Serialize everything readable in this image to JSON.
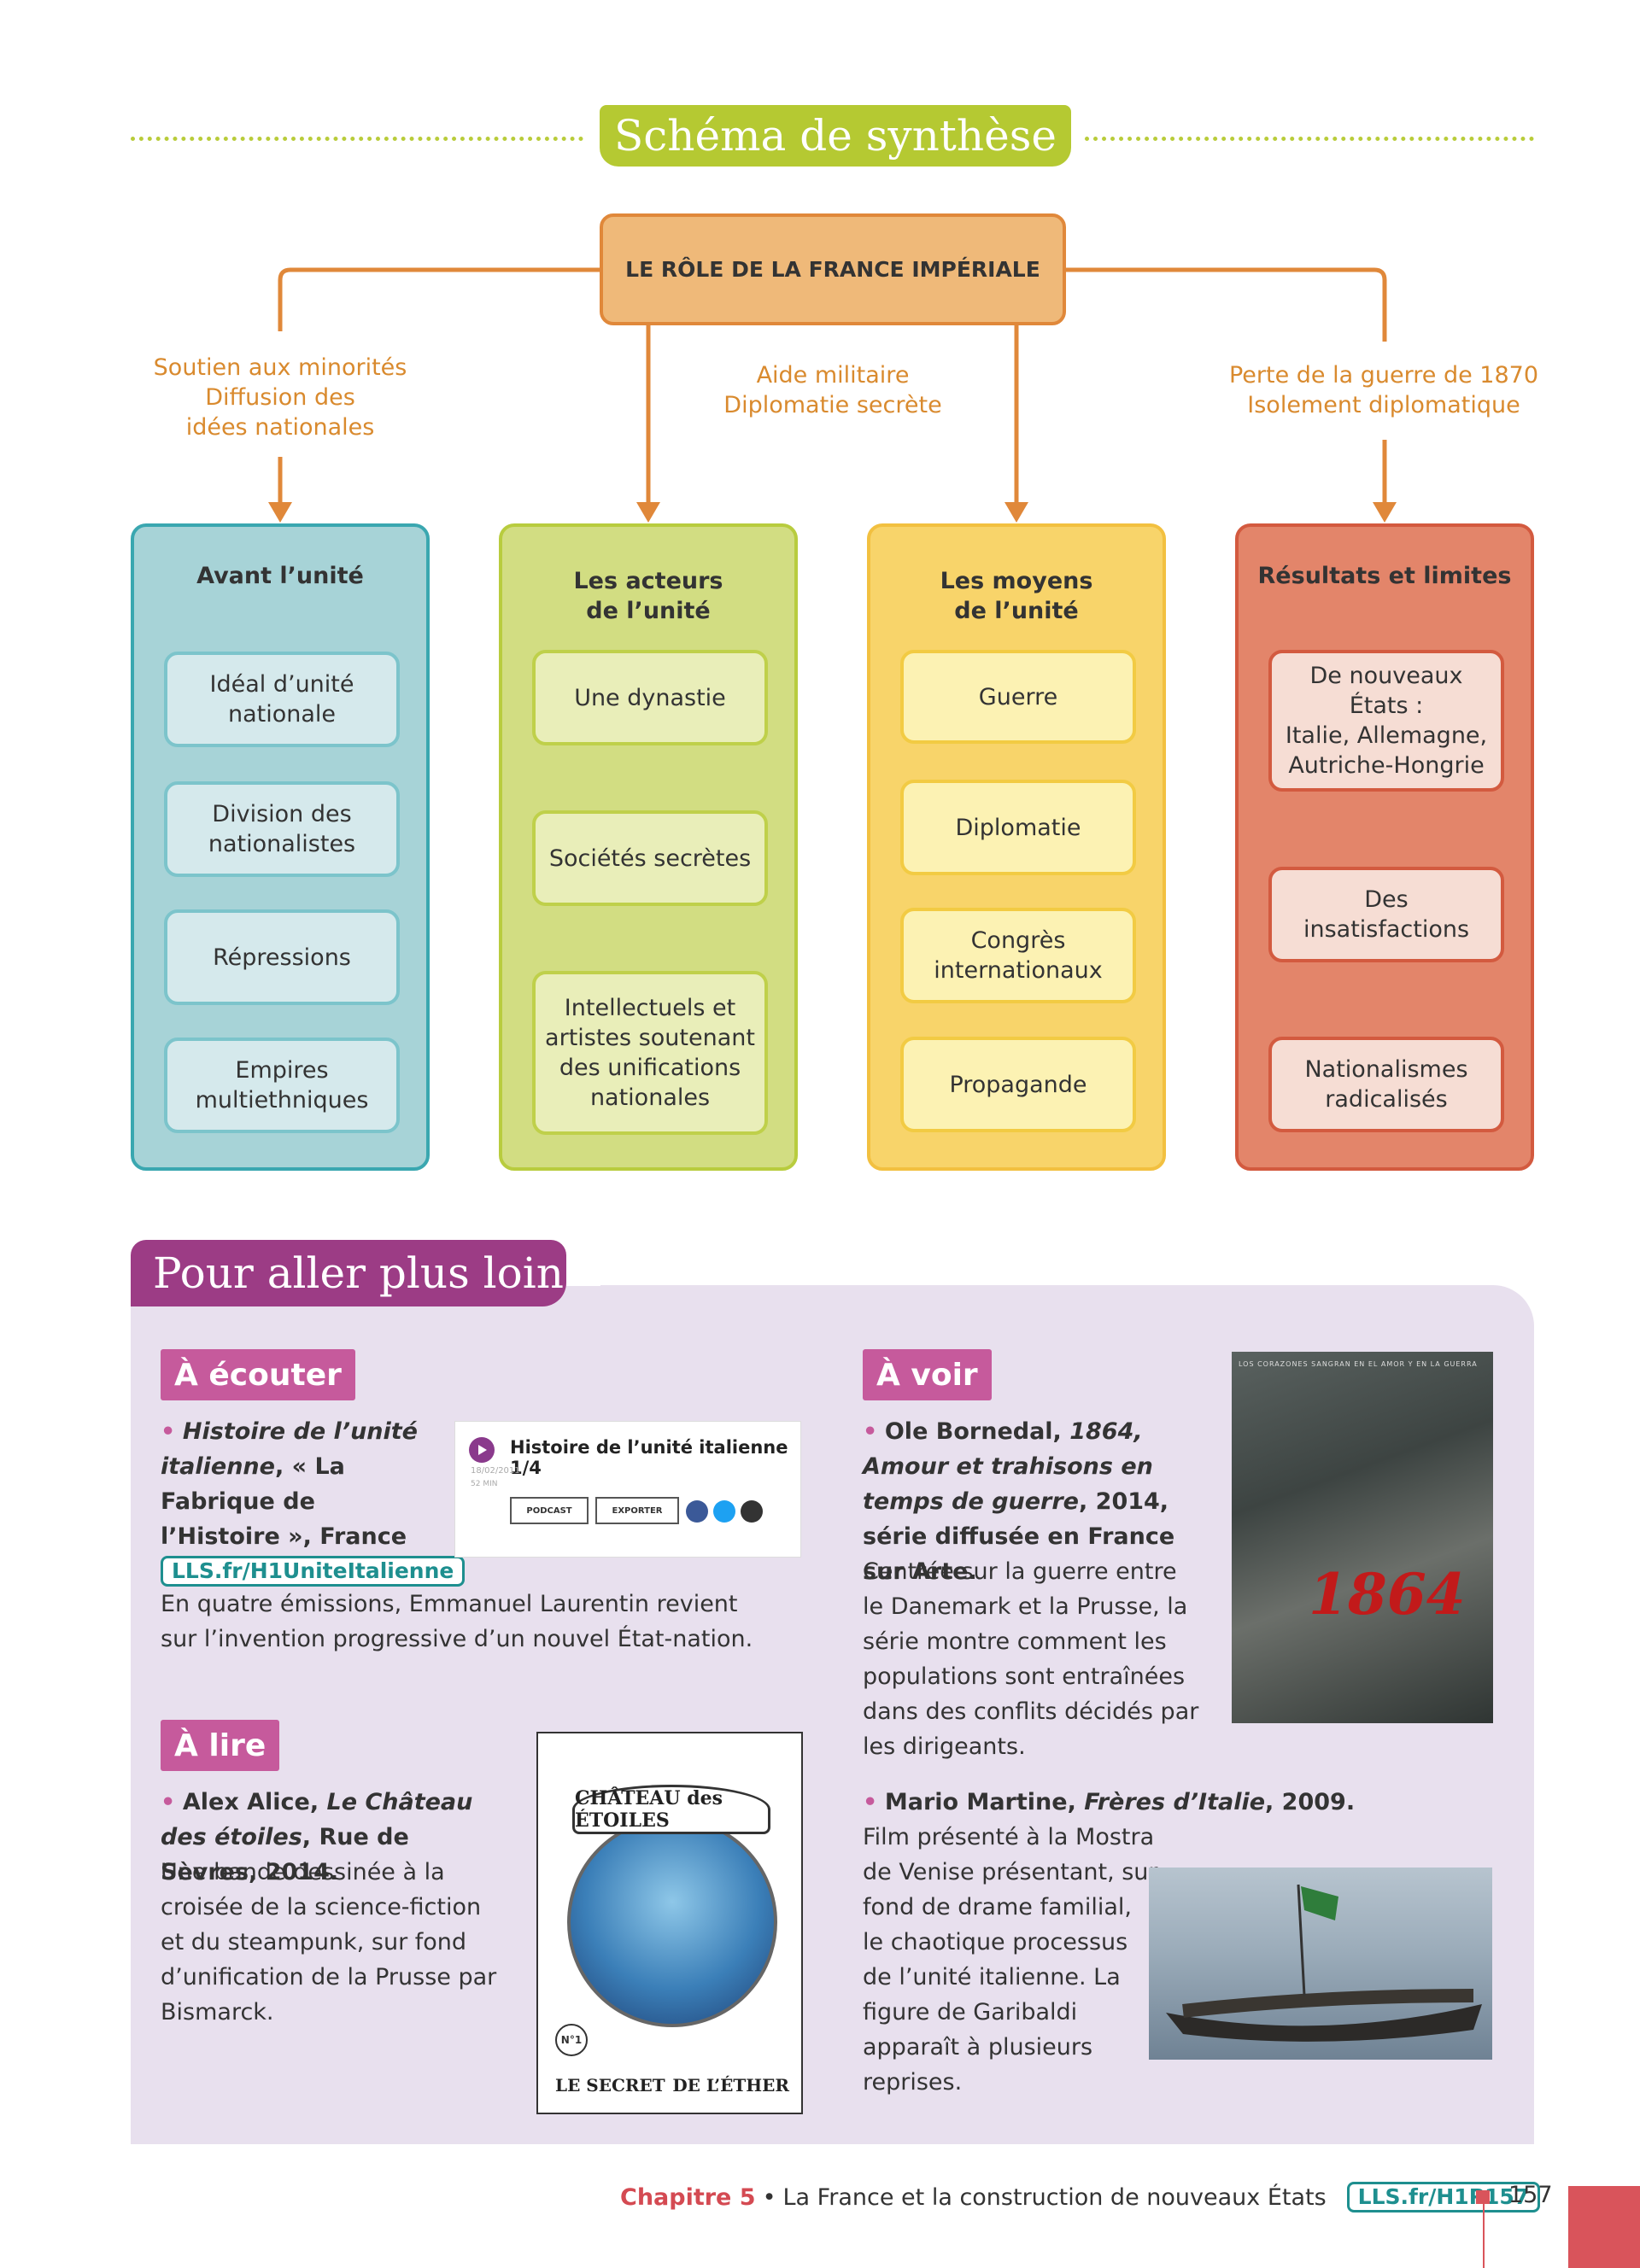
{
  "schema": {
    "title": "Schéma de synthèse",
    "central": "LE RÔLE DE LA FRANCE IMPÉRIALE",
    "branch_labels": [
      [
        "Soutien aux minorités",
        "Diffusion des",
        "idées nationales"
      ],
      [
        "Aide militaire",
        "Diplomatie secrète"
      ],
      [
        "Perte de la guerre de 1870",
        "Isolement diplomatique"
      ]
    ],
    "columns": [
      {
        "title": [
          "Avant l’unité"
        ],
        "items": [
          [
            "Idéal d’unité",
            "nationale"
          ],
          [
            "Division des",
            "nationalistes"
          ],
          [
            "Répressions"
          ],
          [
            "Empires",
            "multiethniques"
          ]
        ]
      },
      {
        "title": [
          "Les acteurs",
          "de l’unité"
        ],
        "items": [
          [
            "Une dynastie"
          ],
          [
            "Sociétés secrètes"
          ],
          [
            "Intellectuels et",
            "artistes soutenant",
            "des unifications",
            "nationales"
          ]
        ]
      },
      {
        "title": [
          "Les moyens",
          "de l’unité"
        ],
        "items": [
          [
            "Guerre"
          ],
          [
            "Diplomatie"
          ],
          [
            "Congrès",
            "internationaux"
          ],
          [
            "Propagande"
          ]
        ]
      },
      {
        "title": [
          "Résultats et limites"
        ],
        "items": [
          [
            "De nouveaux États :",
            "Italie, Allemagne,",
            "Autriche-Hongrie"
          ],
          [
            "Des insatisfactions"
          ],
          [
            "Nationalismes",
            "radicalisés"
          ]
        ]
      }
    ],
    "colors": {
      "teal": "#3aa7b0",
      "green": "#b8cc3e",
      "yellow": "#f2c040",
      "red": "#d35a3f",
      "orange": "#e0883a"
    }
  },
  "further": {
    "title": "Pour aller plus loin",
    "listen": {
      "tag": "À écouter",
      "bullet": "•",
      "ref_italic": "Histoire de l’unité italienne",
      "ref_rest": ", « La Fabrique de l’Histoire », France Culture, 2011.",
      "link": "LLS.fr/H1UniteItalienne",
      "desc": "En quatre émissions, Emmanuel Laurentin revient sur l’invention progressive d’un nouvel État-nation.",
      "podcast": {
        "title": "Histoire de l’unité italienne 1/4",
        "date": "18/02/2011",
        "duration": "52 MIN",
        "btn_podcast": "PODCAST",
        "btn_export": "EXPORTER",
        "play_icon": "play-icon"
      }
    },
    "read": {
      "tag": "À lire",
      "bullet": "•",
      "author": "Alex Alice, ",
      "ref_italic": "Le Château des étoiles",
      "ref_rest": ", Rue de Sèvres, 2014.",
      "desc": "Une bande dessinée à la croisée de la science-fiction et du steampunk, sur fond d’unification de la Prusse par Bismarck.",
      "cover": {
        "banner": "CHÂTEAU des ÉTOILES",
        "bottom_left": "LE SECRET",
        "bottom_right": "DE L’ÉTHER",
        "number": "N°1"
      }
    },
    "watch": {
      "tag": "À voir",
      "item1": {
        "bullet": "•",
        "author": "Ole Bornedal, ",
        "ref_italic": "1864, Amour et trahisons en temps de guerre",
        "ref_rest": ", 2014, série diffusée en France sur Arte.",
        "desc": "Centrée sur la guerre entre le Danemark et la Prusse, la série montre comment les populations sont entraînées dans des conflits décidés par les dirigeants.",
        "poster_title": "1864",
        "poster_tagline": "LOS CORAZONES SANGRAN EN EL AMOR Y EN LA GUERRA"
      },
      "item2": {
        "bullet": "•",
        "author": "Mario Martine, ",
        "ref_italic": "Frères d’Italie",
        "ref_rest": ", 2009.",
        "desc": "Film présenté à la Mostra de Venise présentant, sur fond de drame familial, le chaotique processus de l’unité italienne. La figure de Garibaldi apparaît à plusieurs reprises."
      }
    }
  },
  "footer": {
    "chapter": "Chapitre 5",
    "separator": "•",
    "subject": "La France et la construction de nouveaux États",
    "link": "LLS.fr/H1P157",
    "page": "157"
  }
}
